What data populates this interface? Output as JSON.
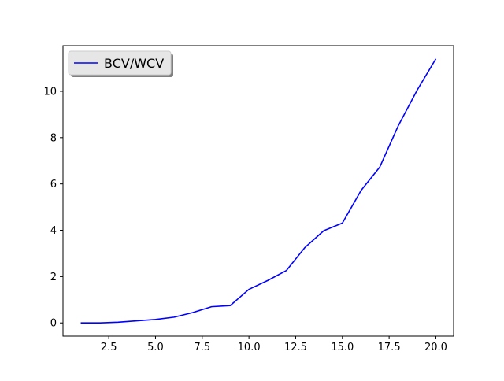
{
  "chart_data": {
    "type": "line",
    "title": "",
    "xlabel": "",
    "ylabel": "",
    "xlim": [
      0.05,
      20.95
    ],
    "ylim": [
      -0.57,
      11.97
    ],
    "xticks": [
      2.5,
      5.0,
      7.5,
      10.0,
      12.5,
      15.0,
      17.5,
      20.0
    ],
    "xtick_labels": [
      "2.5",
      "5.0",
      "7.5",
      "10.0",
      "12.5",
      "15.0",
      "17.5",
      "20.0"
    ],
    "yticks": [
      0,
      2,
      4,
      6,
      8,
      10
    ],
    "ytick_labels": [
      "0",
      "2",
      "4",
      "6",
      "8",
      "10"
    ],
    "grid": false,
    "legend_position": "top-left",
    "series": [
      {
        "name": "BCV/WCV",
        "color": "#0000ff",
        "x": [
          1,
          2,
          3,
          4,
          5,
          6,
          7,
          8,
          9,
          10,
          11,
          12,
          13,
          14,
          15,
          16,
          17,
          18,
          19,
          20
        ],
        "values": [
          0.0,
          0.0,
          0.03,
          0.09,
          0.15,
          0.25,
          0.45,
          0.7,
          0.75,
          1.45,
          1.83,
          2.26,
          3.26,
          3.98,
          4.31,
          5.72,
          6.73,
          8.53,
          10.05,
          11.4
        ]
      }
    ]
  }
}
